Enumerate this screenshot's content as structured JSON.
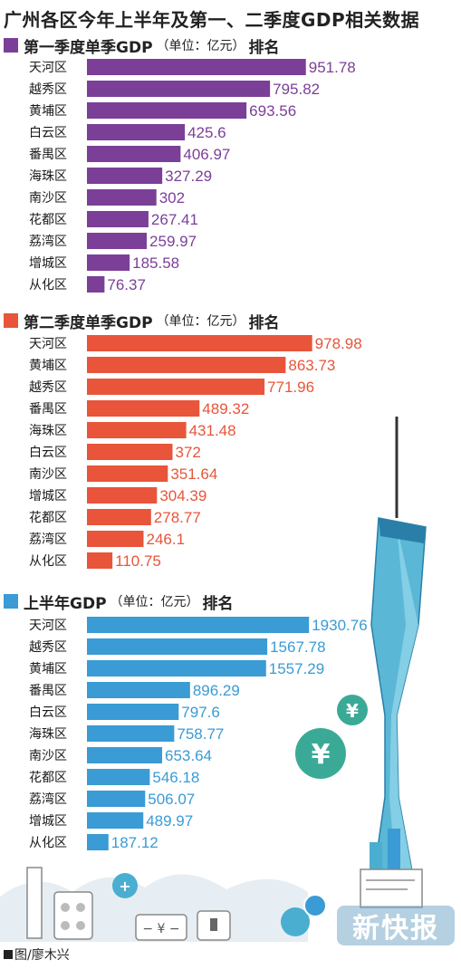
{
  "title": "广州各区今年上半年及第一、二季度GDP相关数据",
  "credit": "图/廖木兴",
  "watermark": "新快报",
  "colors": {
    "q1": "#7b3f98",
    "q2": "#e8553a",
    "h1": "#3a9bd5",
    "tower": "#4aaed0"
  },
  "chart_data": [
    {
      "type": "bar",
      "title_main": "第一季度单季GDP",
      "title_unit": "（单位：亿元）",
      "title_tail": "排名",
      "categories": [
        "天河区",
        "越秀区",
        "黄埔区",
        "白云区",
        "番禺区",
        "海珠区",
        "南沙区",
        "花都区",
        "荔湾区",
        "增城区",
        "从化区"
      ],
      "values": [
        951.78,
        795.82,
        693.56,
        425.6,
        406.97,
        327.29,
        302,
        267.41,
        259.97,
        185.58,
        76.37
      ],
      "labels": [
        "951.78",
        "795.82",
        "693.56",
        "425.6",
        "406.97",
        "327.29",
        "302",
        "267.41",
        "259.97",
        "185.58",
        "76.37"
      ],
      "xlim": [
        0,
        1000
      ]
    },
    {
      "type": "bar",
      "title_main": "第二季度单季GDP",
      "title_unit": "（单位：亿元）",
      "title_tail": "排名",
      "categories": [
        "天河区",
        "黄埔区",
        "越秀区",
        "番禺区",
        "海珠区",
        "白云区",
        "南沙区",
        "增城区",
        "花都区",
        "荔湾区",
        "从化区"
      ],
      "values": [
        978.98,
        863.73,
        771.96,
        489.32,
        431.48,
        372,
        351.64,
        304.39,
        278.77,
        246.1,
        110.75
      ],
      "labels": [
        "978.98",
        "863.73",
        "771.96",
        "489.32",
        "431.48",
        "372",
        "351.64",
        "304.39",
        "278.77",
        "246.1",
        "110.75"
      ],
      "xlim": [
        0,
        1000
      ]
    },
    {
      "type": "bar",
      "title_main": "上半年GDP",
      "title_unit": "（单位：亿元）",
      "title_tail": "排名",
      "categories": [
        "天河区",
        "越秀区",
        "黄埔区",
        "番禺区",
        "白云区",
        "海珠区",
        "南沙区",
        "花都区",
        "荔湾区",
        "增城区",
        "从化区"
      ],
      "values": [
        1930.76,
        1567.78,
        1557.29,
        896.29,
        797.6,
        758.77,
        653.64,
        546.18,
        506.07,
        489.97,
        187.12
      ],
      "labels": [
        "1930.76",
        "1567.78",
        "1557.29",
        "896.29",
        "797.6",
        "758.77",
        "653.64",
        "546.18",
        "506.07",
        "489.97",
        "187.12"
      ],
      "xlim": [
        0,
        2000
      ]
    }
  ]
}
